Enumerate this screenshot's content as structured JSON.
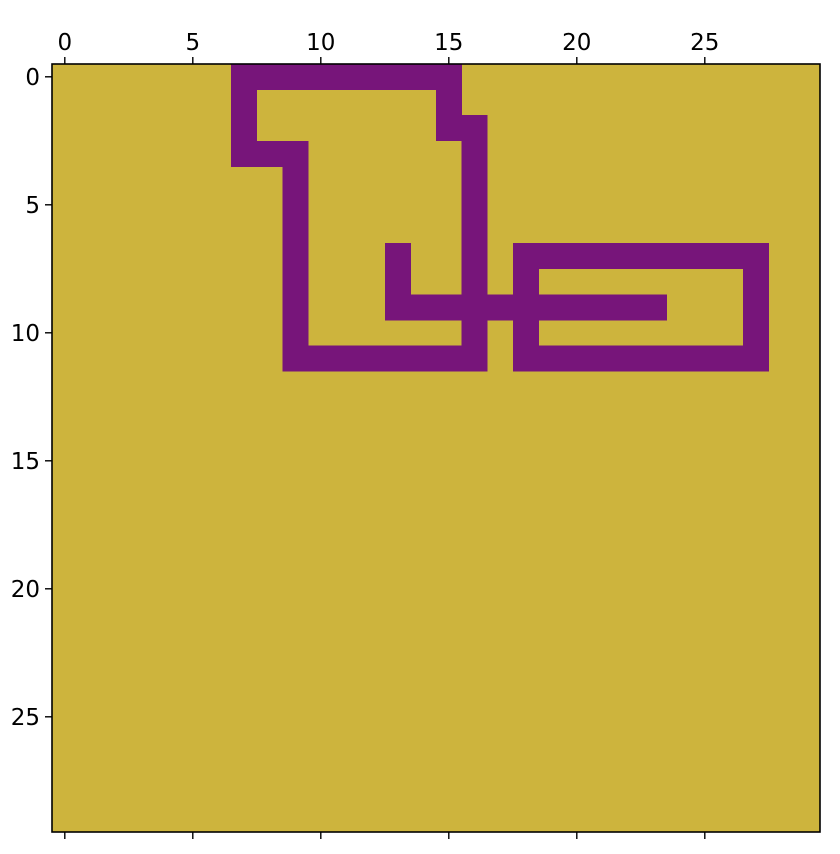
{
  "chart_data": {
    "type": "heatmap",
    "title": "",
    "xlabel": "",
    "ylabel": "",
    "xlim": [
      -0.5,
      29.5
    ],
    "ylim": [
      29.5,
      -0.5
    ],
    "x_ticks": [
      0,
      5,
      10,
      15,
      20,
      25
    ],
    "y_ticks": [
      0,
      5,
      10,
      15,
      20,
      25
    ],
    "x_tick_labels": [
      "0",
      "5",
      "10",
      "15",
      "20",
      "25"
    ],
    "y_tick_labels": [
      "0",
      "5",
      "10",
      "15",
      "20",
      "25"
    ],
    "x_axis_position": "top",
    "grid": false,
    "legend": "none",
    "rows": 30,
    "cols": 30,
    "colors": {
      "background": "#CDB43D",
      "path": "#77157A",
      "axes": "#000000"
    },
    "values_legend": {
      "0": "background",
      "1": "path"
    },
    "cells": [
      [
        0,
        7
      ],
      [
        0,
        8
      ],
      [
        0,
        9
      ],
      [
        0,
        10
      ],
      [
        0,
        11
      ],
      [
        0,
        12
      ],
      [
        0,
        13
      ],
      [
        0,
        14
      ],
      [
        0,
        15
      ],
      [
        1,
        7
      ],
      [
        1,
        15
      ],
      [
        2,
        7
      ],
      [
        2,
        15
      ],
      [
        2,
        16
      ],
      [
        3,
        7
      ],
      [
        3,
        8
      ],
      [
        3,
        9
      ],
      [
        3,
        16
      ],
      [
        4,
        9
      ],
      [
        4,
        16
      ],
      [
        5,
        9
      ],
      [
        5,
        16
      ],
      [
        6,
        9
      ],
      [
        6,
        16
      ],
      [
        7,
        9
      ],
      [
        7,
        13
      ],
      [
        7,
        16
      ],
      [
        7,
        18
      ],
      [
        7,
        19
      ],
      [
        7,
        20
      ],
      [
        7,
        21
      ],
      [
        7,
        22
      ],
      [
        7,
        23
      ],
      [
        7,
        24
      ],
      [
        7,
        25
      ],
      [
        7,
        26
      ],
      [
        7,
        27
      ],
      [
        8,
        9
      ],
      [
        8,
        13
      ],
      [
        8,
        16
      ],
      [
        8,
        18
      ],
      [
        8,
        27
      ],
      [
        9,
        9
      ],
      [
        9,
        13
      ],
      [
        9,
        14
      ],
      [
        9,
        15
      ],
      [
        9,
        16
      ],
      [
        9,
        17
      ],
      [
        9,
        18
      ],
      [
        9,
        19
      ],
      [
        9,
        20
      ],
      [
        9,
        21
      ],
      [
        9,
        22
      ],
      [
        9,
        23
      ],
      [
        9,
        27
      ],
      [
        10,
        9
      ],
      [
        10,
        16
      ],
      [
        10,
        18
      ],
      [
        10,
        27
      ],
      [
        11,
        9
      ],
      [
        11,
        10
      ],
      [
        11,
        11
      ],
      [
        11,
        12
      ],
      [
        11,
        13
      ],
      [
        11,
        14
      ],
      [
        11,
        15
      ],
      [
        11,
        16
      ],
      [
        11,
        18
      ],
      [
        11,
        19
      ],
      [
        11,
        20
      ],
      [
        11,
        21
      ],
      [
        11,
        22
      ],
      [
        11,
        23
      ],
      [
        11,
        24
      ],
      [
        11,
        25
      ],
      [
        11,
        26
      ],
      [
        11,
        27
      ]
    ]
  }
}
